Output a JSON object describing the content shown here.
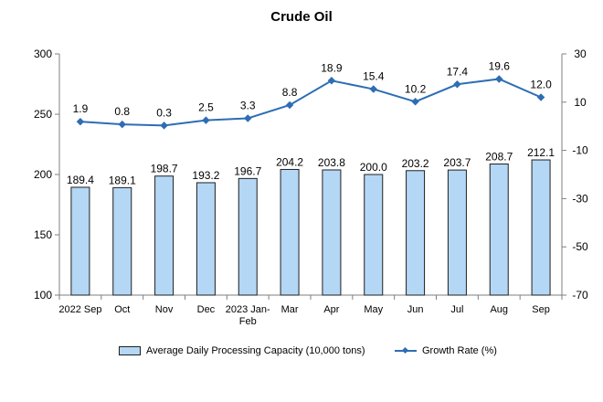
{
  "chart_data": {
    "type": "bar+line",
    "title": "Crude Oil",
    "categories": [
      [
        "2022 Sep"
      ],
      [
        "Oct"
      ],
      [
        "Nov"
      ],
      [
        "Dec"
      ],
      [
        "2023 Jan-",
        "Feb"
      ],
      [
        "Mar"
      ],
      [
        "Apr"
      ],
      [
        "May"
      ],
      [
        "Jun"
      ],
      [
        "Jul"
      ],
      [
        "Aug"
      ],
      [
        "Sep"
      ]
    ],
    "series": [
      {
        "name": "Average Daily Processing Capacity (10,000 tons)",
        "type": "bar",
        "axis": "left",
        "values": [
          189.4,
          189.1,
          198.7,
          193.2,
          196.7,
          204.2,
          203.8,
          200.0,
          203.2,
          203.7,
          208.7,
          212.1
        ],
        "labels": [
          "189.4",
          "189.1",
          "198.7",
          "193.2",
          "196.7",
          "204.2",
          "203.8",
          "200.0",
          "203.2",
          "203.7",
          "208.7",
          "212.1"
        ],
        "color": "#b4d7f5",
        "border_color": "#1f1f1f"
      },
      {
        "name": "Growth Rate (%)",
        "type": "line",
        "axis": "right",
        "values": [
          1.9,
          0.8,
          0.3,
          2.5,
          3.3,
          8.8,
          18.9,
          15.4,
          10.2,
          17.4,
          19.6,
          12.0
        ],
        "labels": [
          "1.9",
          "0.8",
          "0.3",
          "2.5",
          "3.3",
          "8.8",
          "18.9",
          "15.4",
          "10.2",
          "17.4",
          "19.6",
          "12.0"
        ],
        "color": "#2e6db4"
      }
    ],
    "y_left": {
      "min": 100,
      "max": 300,
      "ticks": [
        100,
        150,
        200,
        250,
        300
      ]
    },
    "y_right": {
      "min": -70,
      "max": 30,
      "ticks": [
        -70,
        -50,
        -30,
        -10,
        10,
        30
      ]
    },
    "legend_position": "bottom",
    "grid": false
  }
}
